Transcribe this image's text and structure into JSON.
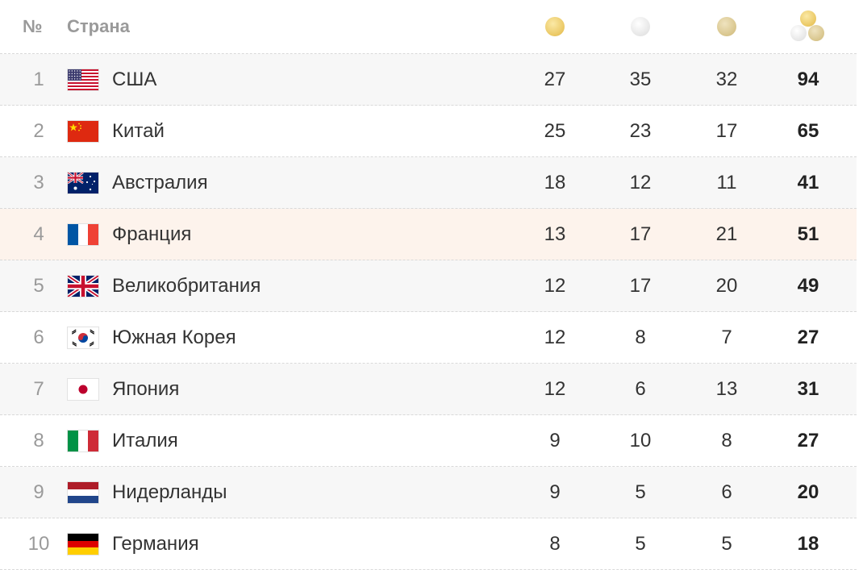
{
  "header": {
    "rank_label": "№",
    "country_label": "Страна",
    "gold_icon": "gold-medal-icon",
    "silver_icon": "silver-medal-icon",
    "bronze_icon": "bronze-medal-icon",
    "total_icon": "total-medals-icon"
  },
  "colors": {
    "gold": "#eac762",
    "silver": "#e6e6e6",
    "bronze": "#d8c58c",
    "highlight_row": "#fdf3ec",
    "odd_row": "#f7f7f7"
  },
  "rows": [
    {
      "rank": "1",
      "country": "США",
      "flag": "usa-flag-icon",
      "gold": "27",
      "silver": "35",
      "bronze": "32",
      "total": "94"
    },
    {
      "rank": "2",
      "country": "Китай",
      "flag": "china-flag-icon",
      "gold": "25",
      "silver": "23",
      "bronze": "17",
      "total": "65"
    },
    {
      "rank": "3",
      "country": "Австралия",
      "flag": "australia-flag-icon",
      "gold": "18",
      "silver": "12",
      "bronze": "11",
      "total": "41"
    },
    {
      "rank": "4",
      "country": "Франция",
      "flag": "france-flag-icon",
      "gold": "13",
      "silver": "17",
      "bronze": "21",
      "total": "51"
    },
    {
      "rank": "5",
      "country": "Великобритания",
      "flag": "uk-flag-icon",
      "gold": "12",
      "silver": "17",
      "bronze": "20",
      "total": "49"
    },
    {
      "rank": "6",
      "country": "Южная Корея",
      "flag": "south-korea-flag-icon",
      "gold": "12",
      "silver": "8",
      "bronze": "7",
      "total": "27"
    },
    {
      "rank": "7",
      "country": "Япония",
      "flag": "japan-flag-icon",
      "gold": "12",
      "silver": "6",
      "bronze": "13",
      "total": "31"
    },
    {
      "rank": "8",
      "country": "Италия",
      "flag": "italy-flag-icon",
      "gold": "9",
      "silver": "10",
      "bronze": "8",
      "total": "27"
    },
    {
      "rank": "9",
      "country": "Нидерланды",
      "flag": "netherlands-flag-icon",
      "gold": "9",
      "silver": "5",
      "bronze": "6",
      "total": "20"
    },
    {
      "rank": "10",
      "country": "Германия",
      "flag": "germany-flag-icon",
      "gold": "8",
      "silver": "5",
      "bronze": "5",
      "total": "18"
    }
  ]
}
